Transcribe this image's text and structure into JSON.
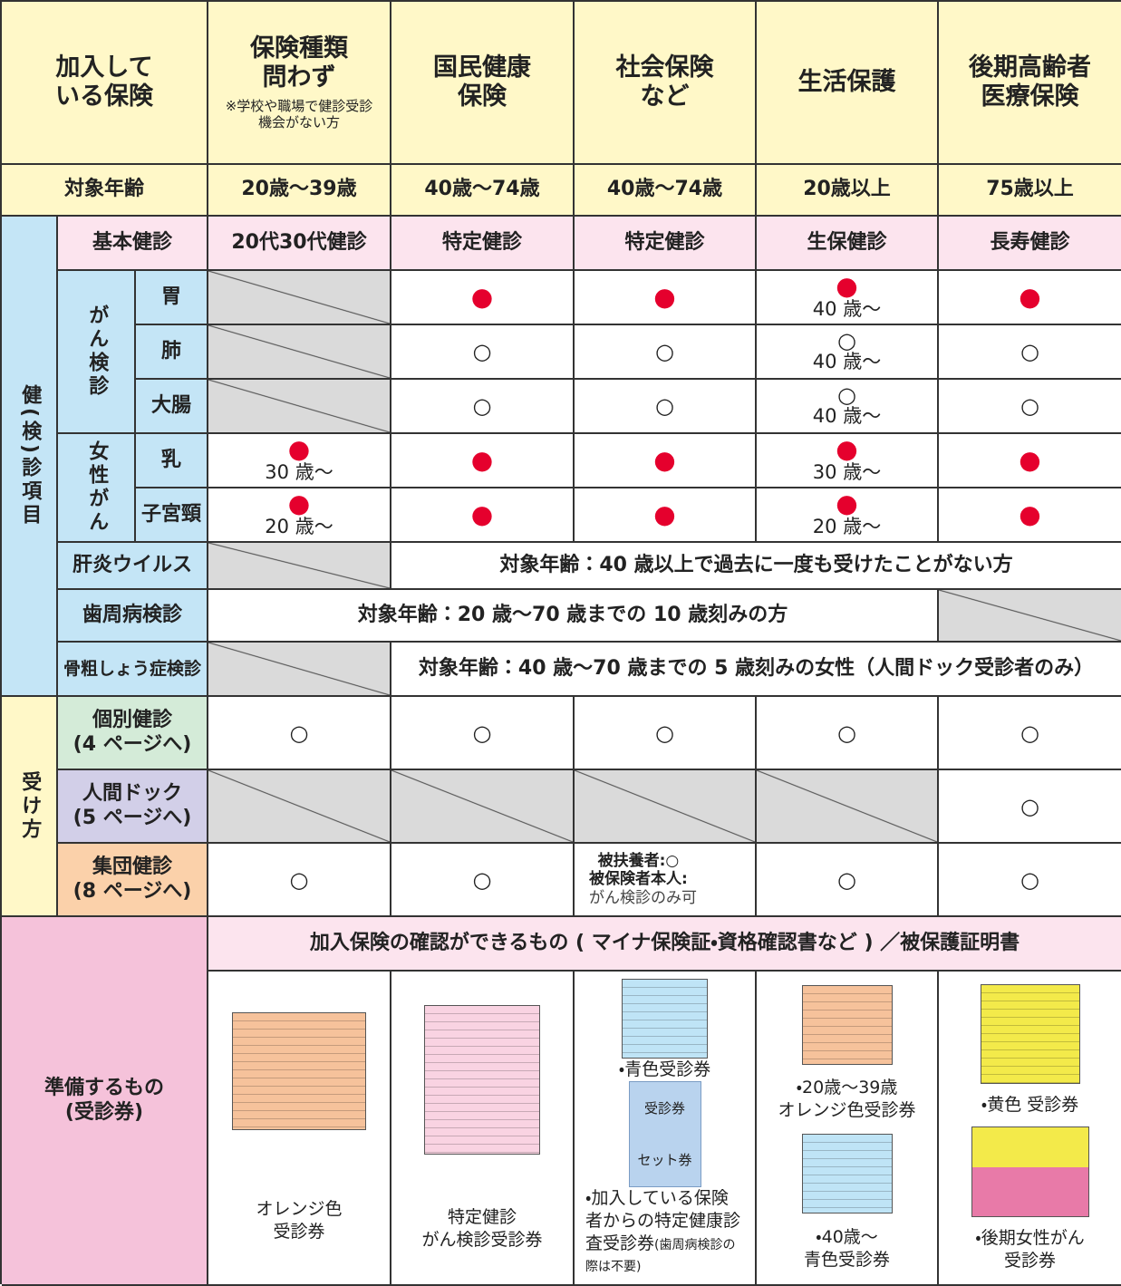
{
  "header": {
    "corner": "加入して\nいる保険",
    "columns": [
      {
        "title": "保険種類\n問わず",
        "note": "※学校や職場で健診受診\n機会がない方"
      },
      {
        "title": "国民健康\n保険"
      },
      {
        "title": "社会保険\nなど"
      },
      {
        "title": "生活保護"
      },
      {
        "title": "後期高齢者\n医療保険"
      }
    ]
  },
  "age": {
    "label": "対象年齢",
    "values": [
      "20歳～39歳",
      "40歳～74歳",
      "40歳～74歳",
      "20歳以上",
      "75歳以上"
    ]
  },
  "exam": {
    "label": "健(検)診項目",
    "basic": {
      "label": "基本健診",
      "values": [
        "20代30代健診",
        "特定健診",
        "特定健診",
        "生保健診",
        "長寿健診"
      ]
    },
    "cancer": {
      "label": "がん検診",
      "rows": [
        {
          "label": "胃",
          "cells": [
            null,
            {
              "mark": "●"
            },
            {
              "mark": "●"
            },
            {
              "mark": "●",
              "note": "40 歳〜"
            },
            {
              "mark": "●"
            }
          ]
        },
        {
          "label": "肺",
          "cells": [
            null,
            {
              "mark": "○"
            },
            {
              "mark": "○"
            },
            {
              "mark": "○",
              "note": "40 歳〜"
            },
            {
              "mark": "○"
            }
          ]
        },
        {
          "label": "大腸",
          "cells": [
            null,
            {
              "mark": "○"
            },
            {
              "mark": "○"
            },
            {
              "mark": "○",
              "note": "40 歳〜"
            },
            {
              "mark": "○"
            }
          ]
        }
      ]
    },
    "female": {
      "label": "女性がん",
      "rows": [
        {
          "label": "乳",
          "cells": [
            {
              "mark": "●",
              "note": "30 歳〜"
            },
            {
              "mark": "●"
            },
            {
              "mark": "●"
            },
            {
              "mark": "●",
              "note": "30 歳〜"
            },
            {
              "mark": "●"
            }
          ]
        },
        {
          "label": "子宮頸",
          "cells": [
            {
              "mark": "●",
              "note": "20 歳〜"
            },
            {
              "mark": "●"
            },
            {
              "mark": "●"
            },
            {
              "mark": "●",
              "note": "20 歳〜"
            },
            {
              "mark": "●"
            }
          ]
        }
      ]
    },
    "hepatitis": {
      "label": "肝炎ウイルス",
      "note": "対象年齢：40 歳以上で過去に一度も受けたことがない方"
    },
    "periodontal": {
      "label": "歯周病検診",
      "note": "対象年齢：20 歳～70 歳までの 10 歳刻みの方"
    },
    "osteo": {
      "label": "骨粗しょう症検診",
      "note": "対象年齢：40 歳～70 歳までの 5 歳刻みの女性（人間ドック受診者のみ）"
    }
  },
  "method": {
    "label": "受け方",
    "rows": [
      {
        "label": "個別健診\n(4 ページへ)",
        "cells": [
          {
            "mark": "○"
          },
          {
            "mark": "○"
          },
          {
            "mark": "○"
          },
          {
            "mark": "○"
          },
          {
            "mark": "○"
          }
        ]
      },
      {
        "label": "人間ドック\n(5 ページへ)",
        "cells": [
          null,
          null,
          null,
          null,
          {
            "mark": "○"
          }
        ]
      },
      {
        "label": "集団健診\n(8 ページへ)",
        "cells": [
          {
            "mark": "○"
          },
          {
            "mark": "○"
          },
          {
            "text": "被扶養者:○\n被保険者本人:",
            "note": "がん検診のみ可"
          },
          {
            "mark": "○"
          },
          {
            "mark": "○"
          }
        ]
      }
    ]
  },
  "prepare": {
    "label": "準備するもの\n(受診券)",
    "banner": "加入保険の確認ができるもの ( マイナ保険証・資格確認書など ) ／被保護証明書",
    "tickets": [
      {
        "captions": [
          "オレンジ色\n受診券"
        ]
      },
      {
        "captions": [
          "特定健診\nがん検診受診券"
        ]
      },
      {
        "captions": [
          "・青色受診券",
          "・加入している保険者からの特定健康診査受診券"
        ],
        "small": "(歯周病検診の際は不要)",
        "box": [
          "受診券",
          "セット券"
        ]
      },
      {
        "captions": [
          "・20歳～39歳\nオレンジ色受診券",
          "・40歳～\n青色受診券"
        ]
      },
      {
        "captions": [
          "・黄色 受診券",
          "・後期女性がん\n受診券"
        ]
      }
    ]
  }
}
